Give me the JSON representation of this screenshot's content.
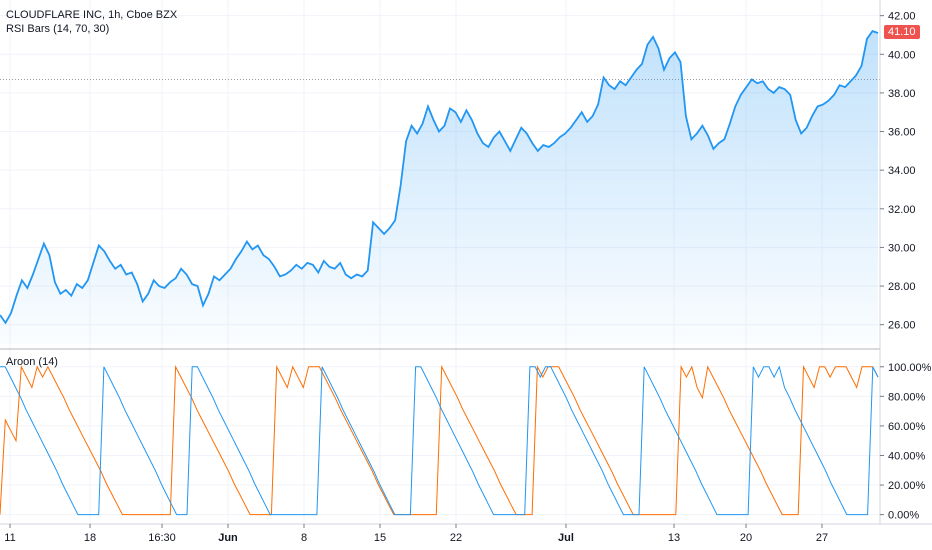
{
  "header": {
    "symbol_line": "CLOUDFLARE INC, 1h, Cboe BZX",
    "indicator_line": "RSI Bars (14, 70, 30)",
    "aroon_line": "Aroon (14)",
    "last_price_label": "41.10"
  },
  "colors": {
    "price_line": "#2196f3",
    "aroon_up": "#ff6d00",
    "aroon_down": "#2196f3",
    "last_price_badge": "#ef5350",
    "grid": "#f0f3fa"
  },
  "chart_data": [
    {
      "type": "area",
      "title": "",
      "y_ticks": [
        "26.00",
        "28.00",
        "30.00",
        "32.00",
        "34.00",
        "36.00",
        "38.00",
        "40.00",
        "42.00"
      ],
      "ylim": [
        25,
        42.5
      ],
      "grid": true,
      "last_value": 41.1,
      "reference_level": 38.7,
      "series": [
        {
          "values": [
            26.5,
            26.1,
            26.6,
            27.5,
            28.3,
            27.9,
            28.6,
            29.4,
            30.2,
            29.6,
            28.2,
            27.6,
            27.8,
            27.5,
            28.1,
            27.9,
            28.3,
            29.2,
            30.1,
            29.8,
            29.3,
            28.9,
            29.1,
            28.6,
            28.7,
            28.1,
            27.2,
            27.6,
            28.3,
            28.0,
            27.9,
            28.2,
            28.4,
            28.9,
            28.6,
            28.1,
            28.0,
            27.0,
            27.6,
            28.5,
            28.3,
            28.6,
            28.9,
            29.4,
            29.8,
            30.3,
            29.9,
            30.1,
            29.6,
            29.4,
            29.0,
            28.5,
            28.6,
            28.8,
            29.1,
            28.9,
            29.2,
            29.1,
            28.7,
            29.3,
            29.0,
            28.9,
            29.2,
            28.6,
            28.4,
            28.6,
            28.5,
            28.8,
            31.3,
            31.0,
            30.7,
            31.0,
            31.4,
            33.2,
            35.5,
            36.3,
            35.9,
            36.4,
            37.3,
            36.6,
            36.0,
            36.3,
            37.2,
            37.0,
            36.5,
            37.1,
            36.6,
            35.9,
            35.4,
            35.2,
            35.7,
            36.0,
            35.5,
            35.0,
            35.6,
            36.2,
            35.9,
            35.4,
            35.0,
            35.3,
            35.2,
            35.4,
            35.7,
            35.9,
            36.2,
            36.6,
            37.0,
            36.5,
            36.8,
            37.4,
            38.8,
            38.4,
            38.2,
            38.6,
            38.4,
            38.8,
            39.2,
            39.5,
            40.5,
            40.9,
            40.3,
            39.2,
            39.8,
            40.1,
            39.6,
            36.8,
            35.6,
            35.9,
            36.3,
            35.8,
            35.1,
            35.4,
            35.6,
            36.4,
            37.3,
            37.9,
            38.3,
            38.7,
            38.5,
            38.6,
            38.2,
            38.0,
            38.3,
            38.2,
            37.9,
            36.6,
            35.9,
            36.2,
            36.8,
            37.3,
            37.4,
            37.6,
            37.9,
            38.4,
            38.3,
            38.6,
            38.9,
            39.4,
            40.8,
            41.2,
            41.1
          ]
        }
      ]
    },
    {
      "type": "line",
      "title": "Aroon (14)",
      "y_ticks": [
        "0.00%",
        "20.00%",
        "40.00%",
        "60.00%",
        "80.00%",
        "100.00%"
      ],
      "ylim": [
        -5,
        110
      ],
      "x_ticks": [
        "11",
        "18",
        "16:30",
        "Jun",
        "8",
        "15",
        "22",
        "Jul",
        "13",
        "20",
        "27"
      ],
      "grid": true,
      "series": [
        {
          "color": "#ff6d00",
          "values": [
            0,
            64,
            57,
            50,
            100,
            93,
            86,
            100,
            93,
            100,
            93,
            86,
            79,
            71,
            64,
            57,
            50,
            43,
            36,
            29,
            21,
            14,
            7,
            0,
            0,
            0,
            0,
            0,
            0,
            0,
            0,
            0,
            0,
            100,
            93,
            86,
            79,
            71,
            64,
            57,
            50,
            43,
            36,
            29,
            21,
            14,
            7,
            0,
            0,
            0,
            0,
            0,
            100,
            93,
            86,
            100,
            93,
            86,
            100,
            100,
            100,
            93,
            86,
            79,
            71,
            64,
            57,
            50,
            43,
            36,
            29,
            21,
            14,
            7,
            0,
            0,
            0,
            0,
            0,
            0,
            0,
            0,
            0,
            100,
            93,
            86,
            79,
            71,
            64,
            57,
            50,
            43,
            36,
            29,
            21,
            14,
            7,
            0,
            0,
            0,
            0,
            100,
            93,
            100,
            100,
            100,
            93,
            86,
            79,
            71,
            64,
            57,
            50,
            43,
            36,
            29,
            21,
            14,
            7,
            0,
            0,
            0,
            0,
            0,
            0,
            0,
            0,
            0,
            100,
            93,
            100,
            86,
            79,
            100,
            93,
            86,
            79,
            71,
            64,
            57,
            50,
            43,
            36,
            29,
            21,
            14,
            7,
            0,
            0,
            0,
            0,
            100,
            93,
            86,
            100,
            100,
            93,
            100,
            100,
            100,
            93,
            86,
            100,
            100,
            100,
            93
          ]
        },
        {
          "color": "#2196f3",
          "values": [
            100,
            100,
            93,
            86,
            79,
            71,
            64,
            57,
            50,
            43,
            36,
            29,
            21,
            14,
            7,
            0,
            0,
            0,
            0,
            0,
            100,
            93,
            86,
            79,
            71,
            64,
            57,
            50,
            43,
            36,
            29,
            21,
            14,
            7,
            0,
            0,
            0,
            100,
            100,
            93,
            86,
            79,
            71,
            64,
            57,
            50,
            43,
            36,
            29,
            21,
            14,
            7,
            0,
            0,
            0,
            0,
            0,
            0,
            0,
            0,
            0,
            0,
            100,
            93,
            86,
            79,
            71,
            64,
            57,
            50,
            43,
            36,
            29,
            21,
            14,
            7,
            0,
            0,
            0,
            0,
            100,
            100,
            93,
            86,
            79,
            71,
            64,
            57,
            50,
            43,
            36,
            29,
            21,
            14,
            7,
            0,
            0,
            0,
            0,
            0,
            0,
            0,
            100,
            100,
            93,
            100,
            100,
            93,
            86,
            79,
            71,
            64,
            57,
            50,
            43,
            36,
            29,
            21,
            14,
            7,
            0,
            0,
            0,
            0,
            100,
            93,
            86,
            79,
            71,
            64,
            57,
            50,
            43,
            36,
            29,
            21,
            14,
            7,
            0,
            0,
            0,
            0,
            0,
            0,
            0,
            100,
            93,
            100,
            100,
            93,
            100,
            86,
            79,
            71,
            64,
            57,
            50,
            43,
            36,
            29,
            21,
            14,
            7,
            0,
            0,
            0,
            0,
            0,
            100,
            93
          ]
        }
      ]
    }
  ]
}
